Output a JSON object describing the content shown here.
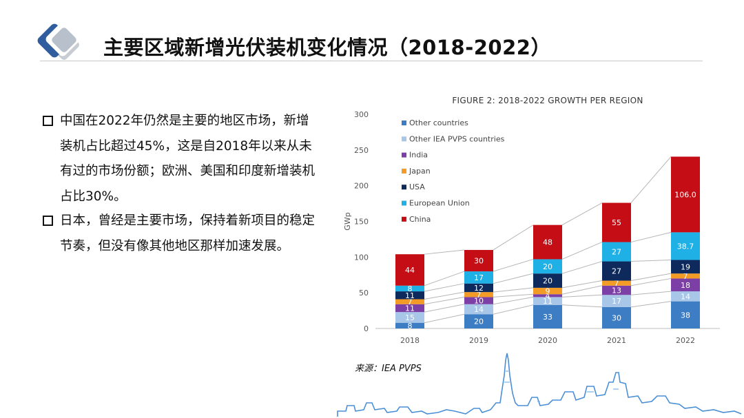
{
  "page_title": "主要区域新增光伏装机变化情况（2018-2022）",
  "bullets": [
    {
      "text": "中国在2022年仍然是主要的地区市场，新增装机占比超过45%，这是自2018年以来从未有过的市场份额；欧洲、美国和印度新增装机占比30%。"
    },
    {
      "text": "日本，曾经是主要市场，保持着新项目的稳定节奏，但没有像其他地区那样加速发展。"
    }
  ],
  "source": "来源：IEA PVPS",
  "chart_data": {
    "type": "bar",
    "stacked": true,
    "title": "FIGURE 2: 2018-2022 GROWTH PER REGION",
    "xlabel": "",
    "ylabel": "GWp",
    "ylim": [
      0,
      300
    ],
    "yticks": [
      0,
      50,
      100,
      150,
      200,
      250,
      300
    ],
    "categories": [
      "2018",
      "2019",
      "2020",
      "2021",
      "2022"
    ],
    "legend_position": "top-left",
    "connector_lines": true,
    "series": [
      {
        "name": "Other countries",
        "color": "#3c7dc4",
        "values": [
          8,
          20,
          33,
          30,
          38
        ],
        "labels": [
          "8",
          "20",
          "33",
          "30",
          "38"
        ]
      },
      {
        "name": "Other IEA PVPS countries",
        "color": "#a7c6e8",
        "values": [
          15,
          14,
          11,
          17,
          14
        ],
        "labels": [
          "15",
          "14",
          "11",
          "17",
          "14"
        ]
      },
      {
        "name": "India",
        "color": "#7b3fa6",
        "values": [
          11,
          10,
          4,
          13,
          18
        ],
        "labels": [
          "11",
          "10",
          "4",
          "13",
          "18"
        ]
      },
      {
        "name": "Japan",
        "color": "#f29b26",
        "values": [
          7,
          7,
          9,
          7,
          7
        ],
        "labels": [
          "7",
          "7",
          "9",
          "7",
          "7"
        ]
      },
      {
        "name": "USA",
        "color": "#0e2a5c",
        "values": [
          11,
          12,
          20,
          27,
          19
        ],
        "labels": [
          "11",
          "12",
          "20",
          "27",
          "19"
        ]
      },
      {
        "name": "European Union",
        "color": "#1fb0e5",
        "values": [
          8,
          17,
          20,
          27,
          38.7
        ],
        "labels": [
          "8",
          "17",
          "20",
          "27",
          "38.7"
        ]
      },
      {
        "name": "China",
        "color": "#c40d14",
        "values": [
          44,
          30,
          48,
          55,
          106.0
        ],
        "labels": [
          "44",
          "30",
          "48",
          "55",
          "106.0"
        ]
      }
    ]
  }
}
